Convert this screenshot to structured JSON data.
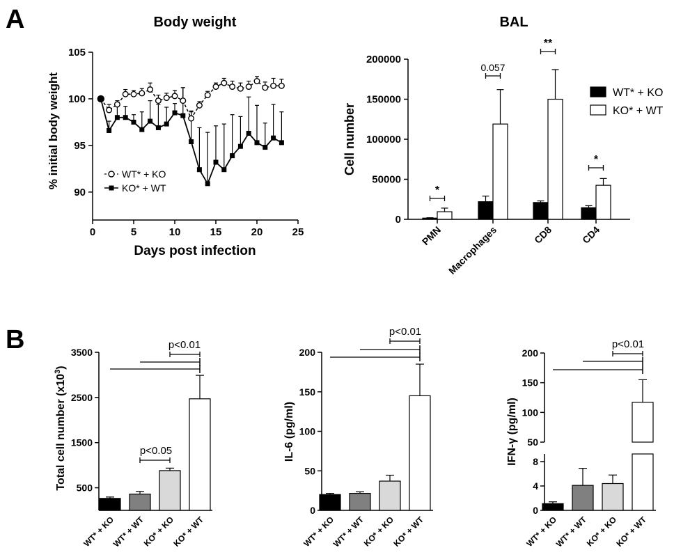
{
  "panel_labels": {
    "a": "A",
    "b": "B"
  },
  "chart_data": [
    {
      "id": "body_weight",
      "type": "line",
      "title": "Body weight",
      "xlabel": "Days post infection",
      "ylabel": "% initial body weight",
      "xlim": [
        0,
        25
      ],
      "ylim": [
        87,
        105
      ],
      "xticks": [
        0,
        5,
        10,
        15,
        20,
        25
      ],
      "yticks": [
        90,
        95,
        100,
        105
      ],
      "legend_position": "left",
      "series": [
        {
          "name": "WT* + KO",
          "marker": "open-circle",
          "line": "dashed",
          "points": [
            [
              1,
              100,
              0
            ],
            [
              2,
              98.8,
              0.6
            ],
            [
              3,
              99.4,
              0.4
            ],
            [
              4,
              100.5,
              0.5
            ],
            [
              5,
              100.5,
              0.4
            ],
            [
              6,
              100.6,
              0.5
            ],
            [
              7,
              101,
              0.7
            ],
            [
              8,
              99.8,
              0.6
            ],
            [
              9,
              100.1,
              0.5
            ],
            [
              10,
              100.3,
              0.6
            ],
            [
              11,
              99.8,
              1.4
            ],
            [
              12,
              97.9,
              0.7
            ],
            [
              13,
              99.3,
              0.4
            ],
            [
              14,
              100.4,
              0.4
            ],
            [
              15,
              101.3,
              0.4
            ],
            [
              16,
              101.7,
              0.5
            ],
            [
              17,
              101.3,
              0.6
            ],
            [
              18,
              101.1,
              0.6
            ],
            [
              19,
              101.3,
              0.6
            ],
            [
              20,
              101.9,
              0.5
            ],
            [
              21,
              101.2,
              0.6
            ],
            [
              22,
              101.4,
              0.8
            ],
            [
              23,
              101.4,
              0.7
            ]
          ]
        },
        {
          "name": "KO* + WT",
          "marker": "filled-square",
          "line": "solid",
          "points": [
            [
              1,
              100,
              0
            ],
            [
              2,
              96.6,
              1.0
            ],
            [
              3,
              98,
              1.5
            ],
            [
              4,
              98,
              1.2
            ],
            [
              5,
              97.5,
              0.8
            ],
            [
              6,
              96.7,
              1.9
            ],
            [
              7,
              97.6,
              2.2
            ],
            [
              8,
              96.9,
              2.5
            ],
            [
              9,
              97.3,
              1.8
            ],
            [
              10,
              98.5,
              1.0
            ],
            [
              11,
              98.2,
              3.0
            ],
            [
              12,
              95.4,
              3.3
            ],
            [
              13,
              92.4,
              4.5
            ],
            [
              14,
              90.9,
              5.5
            ],
            [
              15,
              93.2,
              3.9
            ],
            [
              16,
              92.4,
              4.9
            ],
            [
              17,
              93.9,
              4.4
            ],
            [
              18,
              94.9,
              3.2
            ],
            [
              19,
              96.3,
              3.9
            ],
            [
              20,
              95.3,
              4.0
            ],
            [
              21,
              94.8,
              2.6
            ],
            [
              22,
              95.8,
              3.6
            ],
            [
              23,
              95.3,
              3.3
            ]
          ]
        }
      ]
    },
    {
      "id": "bal",
      "type": "bar",
      "title": "BAL",
      "ylabel": "Cell number",
      "ylim": [
        0,
        200000
      ],
      "yticks": [
        0,
        50000,
        100000,
        150000,
        200000
      ],
      "categories": [
        "PMN",
        "Macrophages",
        "CD8",
        "CD4"
      ],
      "legend_position": "top-right",
      "series": [
        {
          "name": "WT* + KO",
          "color": "#000000",
          "values": [
            1500,
            22000,
            21000,
            14500
          ],
          "errors": [
            500,
            7000,
            2000,
            2500
          ]
        },
        {
          "name": "KO* + WT",
          "color": "#ffffff",
          "values": [
            9500,
            119000,
            150000,
            42500
          ],
          "errors": [
            4500,
            43000,
            37000,
            8500
          ]
        }
      ],
      "annotations": [
        "*",
        "0.057",
        "**",
        "*"
      ]
    },
    {
      "id": "total_cell_number",
      "type": "bar",
      "ylabel": "Total cell number (x10",
      "ylabel_superscript": "3",
      "ylabel_suffix": ")",
      "ylim": [
        0,
        3500
      ],
      "yticks": [
        500,
        1500,
        2500,
        3500
      ],
      "categories": [
        "WT* + KO",
        "WT* + WT",
        "KO* + KO",
        "KO* + WT"
      ],
      "values": [
        265,
        360,
        880,
        2470
      ],
      "errors": [
        30,
        60,
        55,
        520
      ],
      "colors": [
        "#000000",
        "#808080",
        "#d9d9d9",
        "#ffffff"
      ],
      "annotations": [
        "p<0.01",
        "p<0.05"
      ]
    },
    {
      "id": "il6",
      "type": "bar",
      "ylabel": "IL-6 (pg/ml)",
      "ylim": [
        0,
        200
      ],
      "yticks": [
        0,
        50,
        100,
        150,
        200
      ],
      "categories": [
        "WT* + KO",
        "WT* + WT",
        "KO* + KO",
        "KO* + WT"
      ],
      "values": [
        20,
        21.5,
        37,
        145
      ],
      "errors": [
        1.5,
        2,
        7.5,
        40
      ],
      "colors": [
        "#000000",
        "#808080",
        "#d9d9d9",
        "#ffffff"
      ],
      "annotations": [
        "p<0.01"
      ]
    },
    {
      "id": "ifng",
      "type": "bar",
      "ylabel": "IFN-γ (pg/ml)",
      "ylim": [
        0,
        200
      ],
      "axis_break": [
        8,
        50
      ],
      "yticks": [
        0,
        4,
        8,
        50,
        100,
        150,
        200
      ],
      "categories": [
        "WT* + KO",
        "WT* + WT",
        "KO* + KO",
        "KO* + WT"
      ],
      "values": [
        1.1,
        4.1,
        4.4,
        117
      ],
      "errors": [
        0.3,
        2.8,
        1.4,
        38
      ],
      "colors": [
        "#000000",
        "#808080",
        "#d9d9d9",
        "#ffffff"
      ],
      "annotations": [
        "p<0.01"
      ]
    }
  ]
}
